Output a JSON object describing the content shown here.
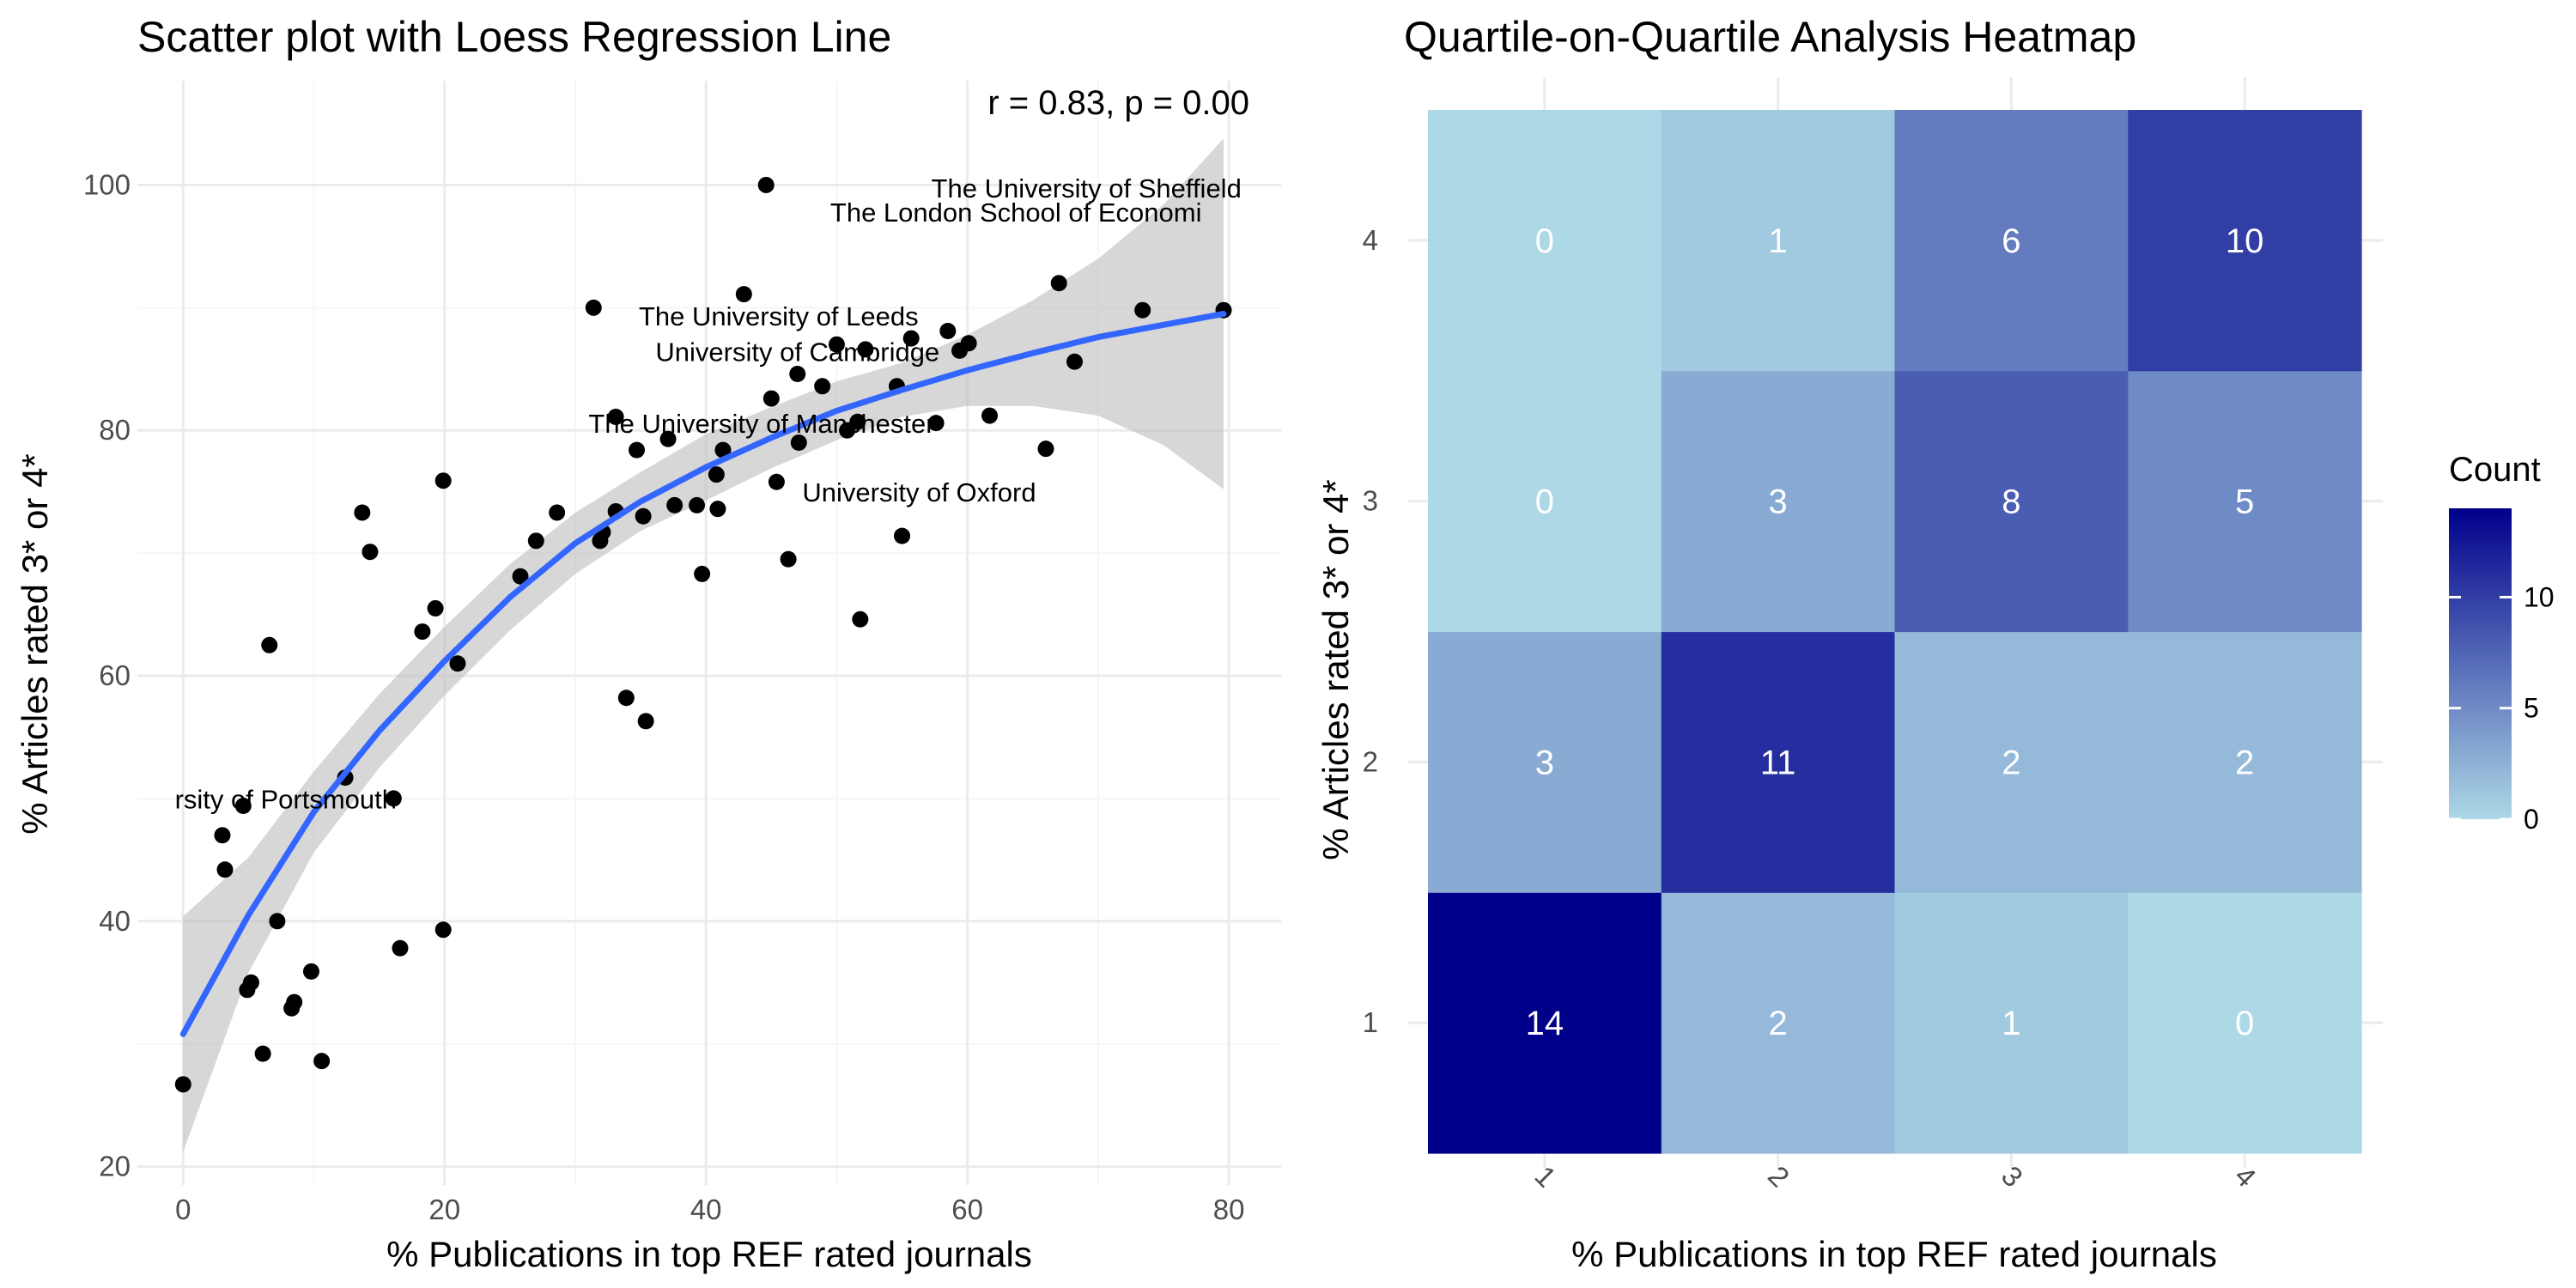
{
  "chart_data": [
    {
      "type": "scatter",
      "title": "Scatter plot with Loess Regression Line",
      "xlabel": "% Publications in top REF rated journals",
      "ylabel": "% Articles rated 3* or 4*",
      "xlim": [
        -3.5,
        84
      ],
      "ylim": [
        18.5,
        108.5
      ],
      "x_ticks": [
        0,
        20,
        40,
        60,
        80
      ],
      "y_ticks": [
        20,
        40,
        60,
        80,
        100
      ],
      "grid": true,
      "annotation": "r = 0.83, p = 0.00",
      "points": [
        {
          "x": 0,
          "y": 26.7
        },
        {
          "x": 3,
          "y": 47
        },
        {
          "x": 3.2,
          "y": 44.2
        },
        {
          "x": 4.6,
          "y": 49.4
        },
        {
          "x": 4.9,
          "y": 34.4
        },
        {
          "x": 5.2,
          "y": 35
        },
        {
          "x": 6.1,
          "y": 29.2
        },
        {
          "x": 6.6,
          "y": 62.5
        },
        {
          "x": 7.2,
          "y": 40
        },
        {
          "x": 8.3,
          "y": 32.9
        },
        {
          "x": 8.5,
          "y": 33.4
        },
        {
          "x": 9.8,
          "y": 35.9
        },
        {
          "x": 10.6,
          "y": 28.6
        },
        {
          "x": 12.4,
          "y": 51.7
        },
        {
          "x": 13.7,
          "y": 73.3
        },
        {
          "x": 14.3,
          "y": 70.1
        },
        {
          "x": 16.1,
          "y": 50
        },
        {
          "x": 16.6,
          "y": 37.8
        },
        {
          "x": 18.3,
          "y": 63.6
        },
        {
          "x": 19.3,
          "y": 65.5
        },
        {
          "x": 19.9,
          "y": 39.3
        },
        {
          "x": 19.9,
          "y": 75.9
        },
        {
          "x": 21,
          "y": 61
        },
        {
          "x": 25.8,
          "y": 68.1
        },
        {
          "x": 27,
          "y": 71
        },
        {
          "x": 28.6,
          "y": 73.3
        },
        {
          "x": 31.4,
          "y": 90
        },
        {
          "x": 31.9,
          "y": 71
        },
        {
          "x": 32.1,
          "y": 71.7
        },
        {
          "x": 33.1,
          "y": 73.4
        },
        {
          "x": 33.1,
          "y": 81.1
        },
        {
          "x": 33.9,
          "y": 58.2
        },
        {
          "x": 34.7,
          "y": 78.4
        },
        {
          "x": 35.2,
          "y": 73
        },
        {
          "x": 35.4,
          "y": 56.3
        },
        {
          "x": 37.1,
          "y": 79.3
        },
        {
          "x": 37.6,
          "y": 73.9
        },
        {
          "x": 39.3,
          "y": 73.9
        },
        {
          "x": 39.7,
          "y": 68.3
        },
        {
          "x": 40.8,
          "y": 76.4
        },
        {
          "x": 40.9,
          "y": 73.6
        },
        {
          "x": 41.3,
          "y": 78.4
        },
        {
          "x": 42.9,
          "y": 91.1
        },
        {
          "x": 44.6,
          "y": 100
        },
        {
          "x": 45,
          "y": 82.6
        },
        {
          "x": 45.4,
          "y": 75.8
        },
        {
          "x": 46.3,
          "y": 69.5
        },
        {
          "x": 47,
          "y": 84.6
        },
        {
          "x": 47.1,
          "y": 79
        },
        {
          "x": 48.9,
          "y": 83.6
        },
        {
          "x": 50,
          "y": 87
        },
        {
          "x": 50.8,
          "y": 80
        },
        {
          "x": 51.6,
          "y": 80.7
        },
        {
          "x": 51.8,
          "y": 64.6
        },
        {
          "x": 52.2,
          "y": 86.6
        },
        {
          "x": 54.6,
          "y": 83.6
        },
        {
          "x": 55,
          "y": 71.4
        },
        {
          "x": 55.7,
          "y": 87.5
        },
        {
          "x": 57.6,
          "y": 80.6
        },
        {
          "x": 58.5,
          "y": 88.1
        },
        {
          "x": 59.4,
          "y": 86.5
        },
        {
          "x": 60.1,
          "y": 87.1
        },
        {
          "x": 61.7,
          "y": 81.2
        },
        {
          "x": 66,
          "y": 78.5
        },
        {
          "x": 67,
          "y": 92
        },
        {
          "x": 68.2,
          "y": 85.6
        },
        {
          "x": 73.4,
          "y": 89.8
        },
        {
          "x": 79.6,
          "y": 89.8
        }
      ],
      "loess": {
        "x": [
          0,
          5,
          10,
          15,
          20,
          25,
          30,
          35,
          40,
          45,
          50,
          55,
          60,
          65,
          70,
          75,
          79.6
        ],
        "y": [
          30.8,
          40.5,
          48.9,
          55.5,
          61.2,
          66.4,
          70.8,
          74.2,
          77,
          79.4,
          81.6,
          83.3,
          84.9,
          86.3,
          87.6,
          88.6,
          89.5
        ],
        "lower": [
          21.2,
          35.8,
          45.6,
          52.5,
          58.4,
          63.7,
          68.3,
          71.8,
          74.3,
          76.9,
          79.2,
          81.1,
          82,
          82,
          81.2,
          78.8,
          75.2
        ],
        "upper": [
          40.4,
          45.2,
          52.2,
          58.5,
          64,
          69.1,
          73.3,
          76.6,
          79.7,
          81.9,
          84,
          85.5,
          87.8,
          90.6,
          94,
          98.4,
          103.8
        ]
      },
      "labels": [
        {
          "text": "The University of Sheffield",
          "x": 67,
          "y": 92
        },
        {
          "text": "The London School of Economi",
          "x": 67,
          "y": 92
        },
        {
          "text": "The University of Leeds",
          "x": 51.8,
          "y": 86.6
        },
        {
          "text": "University of Cambridge",
          "x": 47,
          "y": 84.6
        },
        {
          "text": "The University of Manchester",
          "x": 41.3,
          "y": 78.4
        },
        {
          "text": "University of Oxford",
          "x": 55,
          "y": 71.4
        },
        {
          "text": "rsity of Portsmouth",
          "x": 4.6,
          "y": 49.4
        }
      ]
    },
    {
      "type": "heatmap",
      "title": "Quartile-on-Quartile Analysis Heatmap",
      "xlabel": "% Publications in top REF rated journals",
      "ylabel": "% Articles rated 3* or 4*",
      "x_categories": [
        "1",
        "2",
        "3",
        "4"
      ],
      "y_categories": [
        "1",
        "2",
        "3",
        "4"
      ],
      "values": [
        [
          14,
          2,
          1,
          0
        ],
        [
          3,
          11,
          2,
          2
        ],
        [
          0,
          3,
          8,
          5
        ],
        [
          0,
          1,
          6,
          10
        ]
      ],
      "color_low": "#add8e6",
      "color_high": "#00008b",
      "legend": {
        "title": "Count",
        "ticks": [
          0,
          5,
          10
        ],
        "min": 0,
        "max": 14,
        "placement": "right"
      }
    }
  ],
  "colors": {
    "points": "#000000",
    "loess_line": "#3366ff",
    "ribbon": "#bdbdbd"
  }
}
